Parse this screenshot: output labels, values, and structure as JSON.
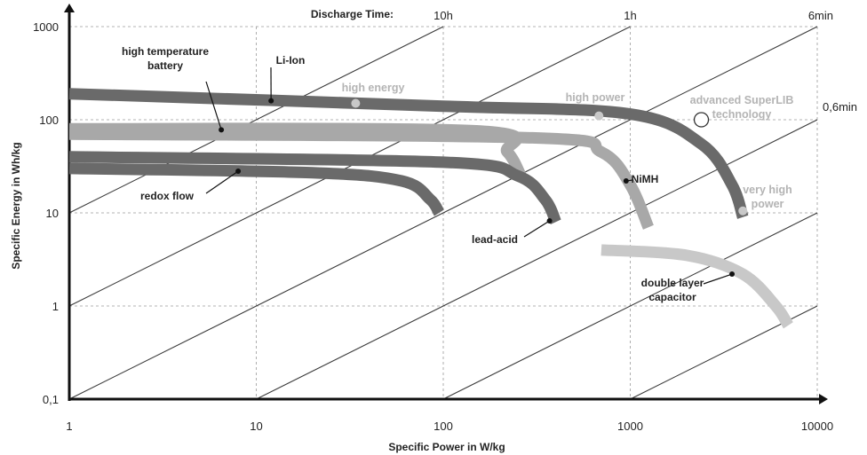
{
  "chart_data": {
    "type": "line",
    "xlabel": "Specific Power in W/kg",
    "ylabel": "Specific Energy in Wh/kg",
    "x_scale": "log",
    "y_scale": "log",
    "xlim": [
      1,
      10000
    ],
    "ylim": [
      0.1,
      1000
    ],
    "x_ticks": [
      {
        "value": 1,
        "label": "1"
      },
      {
        "value": 10,
        "label": "10"
      },
      {
        "value": 100,
        "label": "100"
      },
      {
        "value": 1000,
        "label": "1000"
      },
      {
        "value": 10000,
        "label": "10000"
      }
    ],
    "y_ticks": [
      {
        "value": 0.1,
        "label": "0,1"
      },
      {
        "value": 1,
        "label": "1"
      },
      {
        "value": 10,
        "label": "10"
      },
      {
        "value": 100,
        "label": "100"
      },
      {
        "value": 1000,
        "label": "1000"
      }
    ],
    "grid": true,
    "discharge_time": {
      "title": "Discharge Time:",
      "lines": [
        {
          "hours": 10,
          "label": "10h"
        },
        {
          "hours": 1,
          "label": "1h"
        },
        {
          "hours": 0.1,
          "label": "6min"
        },
        {
          "hours": 0.01,
          "label": "0,6min"
        },
        {
          "hours": 0.001,
          "label": ""
        },
        {
          "hours": 0.0001,
          "label": ""
        }
      ]
    },
    "series": [
      {
        "name": "Li-Ion",
        "color": "#6a6a6a",
        "points": [
          [
            1,
            190
          ],
          [
            100,
            140
          ],
          [
            1000,
            115
          ],
          [
            2400,
            55
          ],
          [
            3500,
            20
          ],
          [
            4000,
            9
          ]
        ]
      },
      {
        "name": "high temperature battery",
        "color": "#a8a8a8",
        "points": [
          [
            1,
            80
          ],
          [
            150,
            76
          ],
          [
            220,
            45
          ],
          [
            260,
            25
          ]
        ]
      },
      {
        "name": "NiMH",
        "color": "#a8a8a8",
        "points": [
          [
            1,
            70
          ],
          [
            300,
            64
          ],
          [
            700,
            45
          ],
          [
            1000,
            20
          ],
          [
            1250,
            7
          ]
        ]
      },
      {
        "name": "lead-acid",
        "color": "#6a6a6a",
        "points": [
          [
            1,
            40
          ],
          [
            100,
            35
          ],
          [
            250,
            25
          ],
          [
            350,
            14
          ],
          [
            400,
            8
          ]
        ]
      },
      {
        "name": "redox flow",
        "color": "#6a6a6a",
        "points": [
          [
            1,
            30
          ],
          [
            20,
            27
          ],
          [
            60,
            22
          ],
          [
            85,
            14
          ],
          [
            95,
            10
          ]
        ]
      },
      {
        "name": "double layer capacitor",
        "color": "#c8c8c8",
        "points": [
          [
            700,
            4
          ],
          [
            2000,
            3.5
          ],
          [
            4000,
            2.2
          ],
          [
            6000,
            1
          ],
          [
            7000,
            0.62
          ]
        ]
      }
    ],
    "annotations": [
      {
        "text": "Li-Ion",
        "line1": "",
        "point": [
          12,
          160
        ],
        "style": "dark"
      },
      {
        "text": "high temperature",
        "line1": "battery",
        "point": [
          6.5,
          78
        ],
        "style": "dark"
      },
      {
        "text": "NiMH",
        "line1": "",
        "point": [
          950,
          22
        ],
        "style": "dark"
      },
      {
        "text": "lead-acid",
        "line1": "",
        "point": [
          370,
          8.2
        ],
        "style": "dark"
      },
      {
        "text": "redox flow",
        "line1": "",
        "point": [
          8,
          28
        ],
        "style": "dark"
      },
      {
        "text": "double layer",
        "line1": "capacitor",
        "point": [
          3500,
          2.2
        ],
        "style": "dark"
      },
      {
        "text": "high energy",
        "line1": "",
        "point": [
          34,
          150
        ],
        "style": "grey"
      },
      {
        "text": "high power",
        "line1": "",
        "point": [
          680,
          110
        ],
        "style": "grey"
      },
      {
        "text": "very high",
        "line1": "power",
        "point": [
          4000,
          10.5
        ],
        "style": "grey"
      },
      {
        "text": "advanced SuperLIB",
        "line1": "technology",
        "point": [
          2400,
          100
        ],
        "style": "grey-open"
      }
    ]
  }
}
